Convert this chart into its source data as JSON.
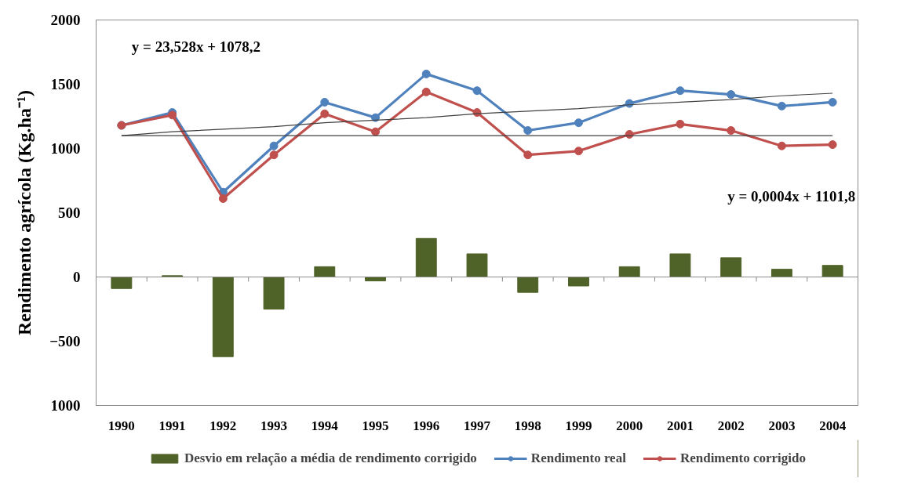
{
  "chart_data": {
    "type": "line",
    "ylabel": "Rendimento agrícola (Kg.ha⁻¹)",
    "categories": [
      "1990",
      "1991",
      "1992",
      "1993",
      "1994",
      "1995",
      "1996",
      "1997",
      "1998",
      "1999",
      "2000",
      "2001",
      "2002",
      "2003",
      "2004"
    ],
    "ylim": [
      -1000,
      2000
    ],
    "yticks": [
      {
        "value": -1000,
        "label": "1000"
      },
      -500,
      0,
      500,
      1000,
      1500,
      2000
    ],
    "legend": "bottom",
    "series": [
      {
        "name": "Desvio em relação a média de rendimento corrigido",
        "type": "bar",
        "color": "#4f6228",
        "values": [
          -90,
          10,
          -620,
          -250,
          80,
          -30,
          300,
          180,
          -120,
          -70,
          80,
          180,
          150,
          60,
          90
        ]
      },
      {
        "name": "Rendimento real",
        "color": "#4f81bd",
        "marker": "circle",
        "values": [
          1180,
          1280,
          660,
          1020,
          1360,
          1240,
          1580,
          1450,
          1140,
          1200,
          1350,
          1450,
          1420,
          1330,
          1360
        ]
      },
      {
        "name": "Rendimento corrigido",
        "color": "#c0504d",
        "marker": "circle",
        "values": [
          1180,
          1260,
          610,
          950,
          1270,
          1130,
          1440,
          1280,
          950,
          980,
          1110,
          1190,
          1140,
          1020,
          1030
        ]
      },
      {
        "color": "#404040",
        "values": [
          1100,
          1130,
          1150,
          1170,
          1200,
          1220,
          1240,
          1270,
          1290,
          1310,
          1340,
          1360,
          1380,
          1410,
          1430
        ]
      },
      {
        "color": "#404040",
        "values": [
          1100,
          1100,
          1100,
          1100,
          1100,
          1100,
          1100,
          1100,
          1100,
          1100,
          1100,
          1100,
          1100,
          1100,
          1100
        ]
      }
    ],
    "annotations": [
      "y = 23,528x + 1078,2",
      "y = 0,0004x + 1101,8"
    ]
  }
}
